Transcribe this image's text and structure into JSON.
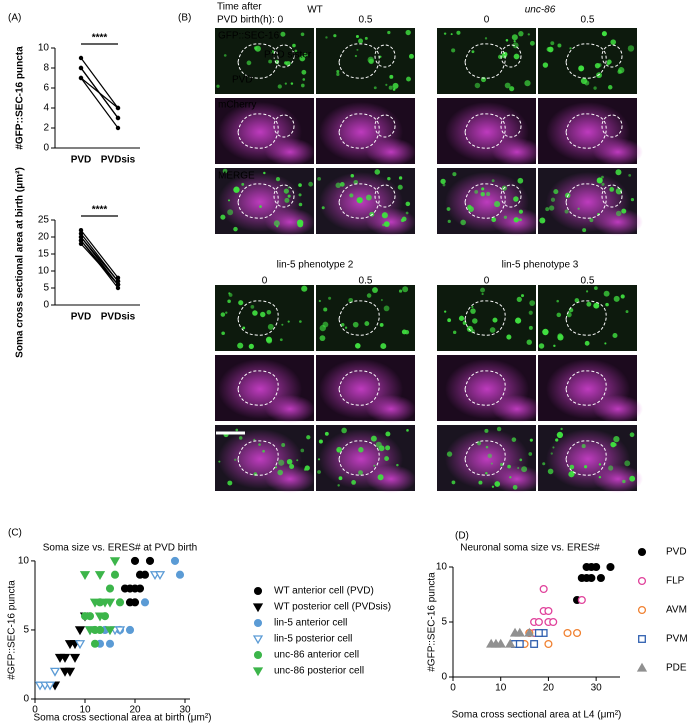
{
  "chart_data": [
    {
      "type": "line",
      "panel_label": "(A)",
      "y_label": "#GFP::SEC-16 puncta",
      "significance": "****",
      "categories": [
        "PVD",
        "PVDsis"
      ],
      "color": "#000000",
      "series": [
        {
          "values": [
            9,
            4
          ]
        },
        {
          "values": [
            8,
            3
          ]
        },
        {
          "values": [
            7,
            4
          ]
        },
        {
          "values": [
            8,
            3
          ]
        },
        {
          "values": [
            7,
            2
          ]
        }
      ],
      "ylim": [
        0,
        10
      ],
      "yticks": [
        0,
        2,
        4,
        6,
        8,
        10
      ]
    },
    {
      "type": "line",
      "y_label": "Soma cross sectional area at birth (μm²)",
      "significance": "****",
      "categories": [
        "PVD",
        "PVDsis"
      ],
      "color": "#000000",
      "series": [
        {
          "values": [
            22,
            8
          ]
        },
        {
          "values": [
            21,
            7
          ]
        },
        {
          "values": [
            20,
            6
          ]
        },
        {
          "values": [
            19,
            5
          ]
        },
        {
          "values": [
            19,
            6
          ]
        },
        {
          "values": [
            20,
            7
          ]
        },
        {
          "values": [
            18,
            6
          ]
        }
      ],
      "ylim": [
        0,
        25
      ],
      "yticks": [
        0,
        5,
        10,
        15,
        20,
        25
      ]
    },
    {
      "type": "scatter",
      "panel_label": "(C)",
      "title": "Soma size vs. ERES# at PVD birth",
      "x_label": "Soma cross sectional area at birth (μm²)",
      "y_label": "#GFP::SEC-16 puncta",
      "xlim": [
        0,
        31
      ],
      "xticks": [
        0,
        10,
        20,
        30
      ],
      "ylim": [
        0,
        10.5
      ],
      "yticks": [
        0,
        5,
        10
      ],
      "series": [
        {
          "name": "WT anterior cell (PVD)",
          "color": "#000000",
          "marker": "circle",
          "filled": true,
          "x": [
            18,
            19,
            20,
            21,
            19,
            20,
            22,
            21,
            23,
            20
          ],
          "values": [
            8,
            8,
            8,
            8,
            7,
            7,
            9,
            9,
            10,
            10
          ]
        },
        {
          "name": "WT posterior cell  (PVDsis)",
          "color": "#000000",
          "marker": "triangle-down",
          "filled": true,
          "x": [
            5,
            6,
            7,
            8,
            9,
            10,
            8,
            6,
            7,
            4
          ],
          "values": [
            3,
            3,
            4,
            4,
            5,
            6,
            3,
            2,
            2,
            1
          ]
        },
        {
          "name": "lin-5  anterior cell",
          "color": "#5b9bd5",
          "marker": "circle",
          "filled": true,
          "x": [
            13,
            14,
            15,
            19,
            22,
            28,
            29,
            17
          ],
          "values": [
            4,
            5,
            4,
            5,
            7,
            10,
            9,
            5
          ]
        },
        {
          "name": "lin-5  posterior cell",
          "color": "#5b9bd5",
          "marker": "triangle-down",
          "filled": false,
          "x": [
            1,
            2,
            3,
            4,
            9,
            11,
            16,
            17,
            24,
            25
          ],
          "values": [
            1,
            1,
            1,
            2,
            4,
            5,
            5,
            5,
            9,
            9
          ]
        },
        {
          "name": "unc-86  anterior cell",
          "color": "#3cb54a",
          "marker": "circle",
          "filled": true,
          "x": [
            10,
            11,
            12,
            13,
            14,
            15,
            16,
            13,
            17,
            12
          ],
          "values": [
            6,
            6,
            5,
            5,
            6,
            8,
            9,
            7,
            7,
            4
          ]
        },
        {
          "name": "unc-86  posterior cell",
          "color": "#3cb54a",
          "marker": "triangle-down",
          "filled": true,
          "x": [
            10,
            12,
            13,
            14,
            15,
            16,
            11,
            13,
            15
          ],
          "values": [
            9,
            7,
            6,
            7,
            7,
            10,
            5,
            9,
            5
          ]
        }
      ]
    },
    {
      "type": "scatter",
      "panel_label": "(D)",
      "title": "Neuronal soma size vs. ERES#",
      "x_label": "Soma cross sectional area at L4 (μm²)",
      "y_label": "#GFP::SEC-16 puncta",
      "xlim": [
        0,
        35
      ],
      "xticks": [
        0,
        10,
        20,
        30
      ],
      "ylim": [
        0,
        11
      ],
      "yticks": [
        0,
        5,
        10
      ],
      "series": [
        {
          "name": "PVD",
          "color": "#000000",
          "marker": "circle",
          "filled": true,
          "x": [
            26,
            27,
            28,
            29,
            30,
            31,
            33,
            28,
            29
          ],
          "values": [
            7,
            9,
            10,
            9,
            10,
            9,
            10,
            9,
            10
          ]
        },
        {
          "name": "FLP",
          "color": "#e0409a",
          "marker": "circle",
          "filled": false,
          "x": [
            17,
            18,
            19,
            20,
            21,
            19,
            20,
            16,
            27,
            17
          ],
          "values": [
            5,
            5,
            6,
            5,
            5,
            8,
            6,
            4,
            7,
            4
          ]
        },
        {
          "name": "AVM",
          "color": "#f08030",
          "marker": "circle",
          "filled": false,
          "x": [
            14,
            15,
            16,
            17,
            20,
            24,
            26,
            18
          ],
          "values": [
            3,
            3,
            4,
            3,
            3,
            4,
            4,
            4
          ]
        },
        {
          "name": "PVM",
          "color": "#3060b0",
          "marker": "square",
          "filled": false,
          "x": [
            13,
            14,
            17,
            19,
            18
          ],
          "values": [
            3,
            3,
            3,
            4,
            4
          ]
        },
        {
          "name": "PDE",
          "color": "#909090",
          "marker": "triangle-up",
          "filled": true,
          "x": [
            8,
            9,
            10,
            12,
            13,
            14,
            16
          ],
          "values": [
            3,
            3,
            3,
            3,
            4,
            4,
            4
          ]
        }
      ]
    }
  ],
  "panel_b": {
    "label": "(B)",
    "time_label": "Time after",
    "groups": [
      {
        "title": "WT",
        "times": [
          "PVD birth(h): 0",
          "0.5"
        ]
      },
      {
        "title": "unc-86",
        "times": [
          "0",
          "0.5"
        ]
      },
      {
        "title": "lin-5 phenotype 2",
        "times": [
          "0",
          "0.5"
        ]
      },
      {
        "title": "lin-5 phenotype 3",
        "times": [
          "0",
          "0.5"
        ]
      }
    ],
    "channels": [
      "GFP::SEC-16",
      "mCherry",
      "MERGE"
    ],
    "cells": [
      "PVD",
      "PVD sister"
    ]
  }
}
